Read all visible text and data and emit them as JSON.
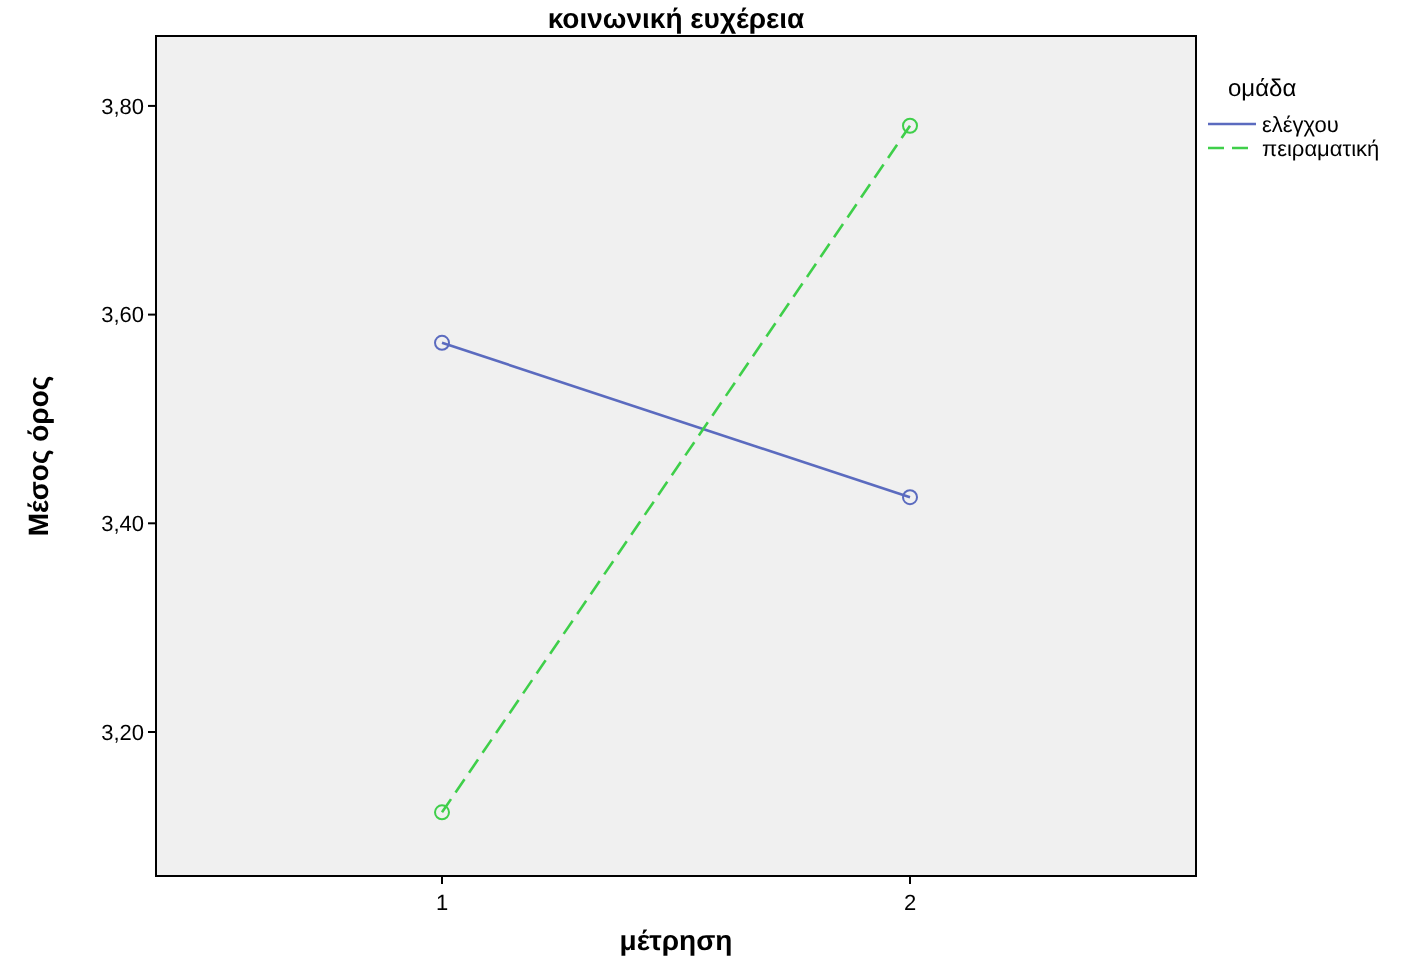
{
  "chart_data": {
    "type": "line",
    "title": "κοινωνική ευχέρεια",
    "xlabel": "μέτρηση",
    "ylabel": "Μέσος όρος",
    "legend_title": "ομάδα",
    "categories": [
      "1",
      "2"
    ],
    "series": [
      {
        "name": "ελέγχου",
        "color": "#5b6bbf",
        "values": [
          3.573,
          3.425
        ],
        "line_style": "solid"
      },
      {
        "name": "πειραματική",
        "color": "#3fcf4a",
        "values": [
          3.123,
          3.781
        ],
        "line_style": "dashed"
      }
    ],
    "ylim": [
      3.062,
      3.867
    ],
    "yticks": [
      {
        "value": 3.2,
        "label": "3,20"
      },
      {
        "value": 3.4,
        "label": "3,40"
      },
      {
        "value": 3.6,
        "label": "3,60"
      },
      {
        "value": 3.8,
        "label": "3,80"
      }
    ],
    "marker": "circle",
    "legend": "top right",
    "grid": false
  }
}
